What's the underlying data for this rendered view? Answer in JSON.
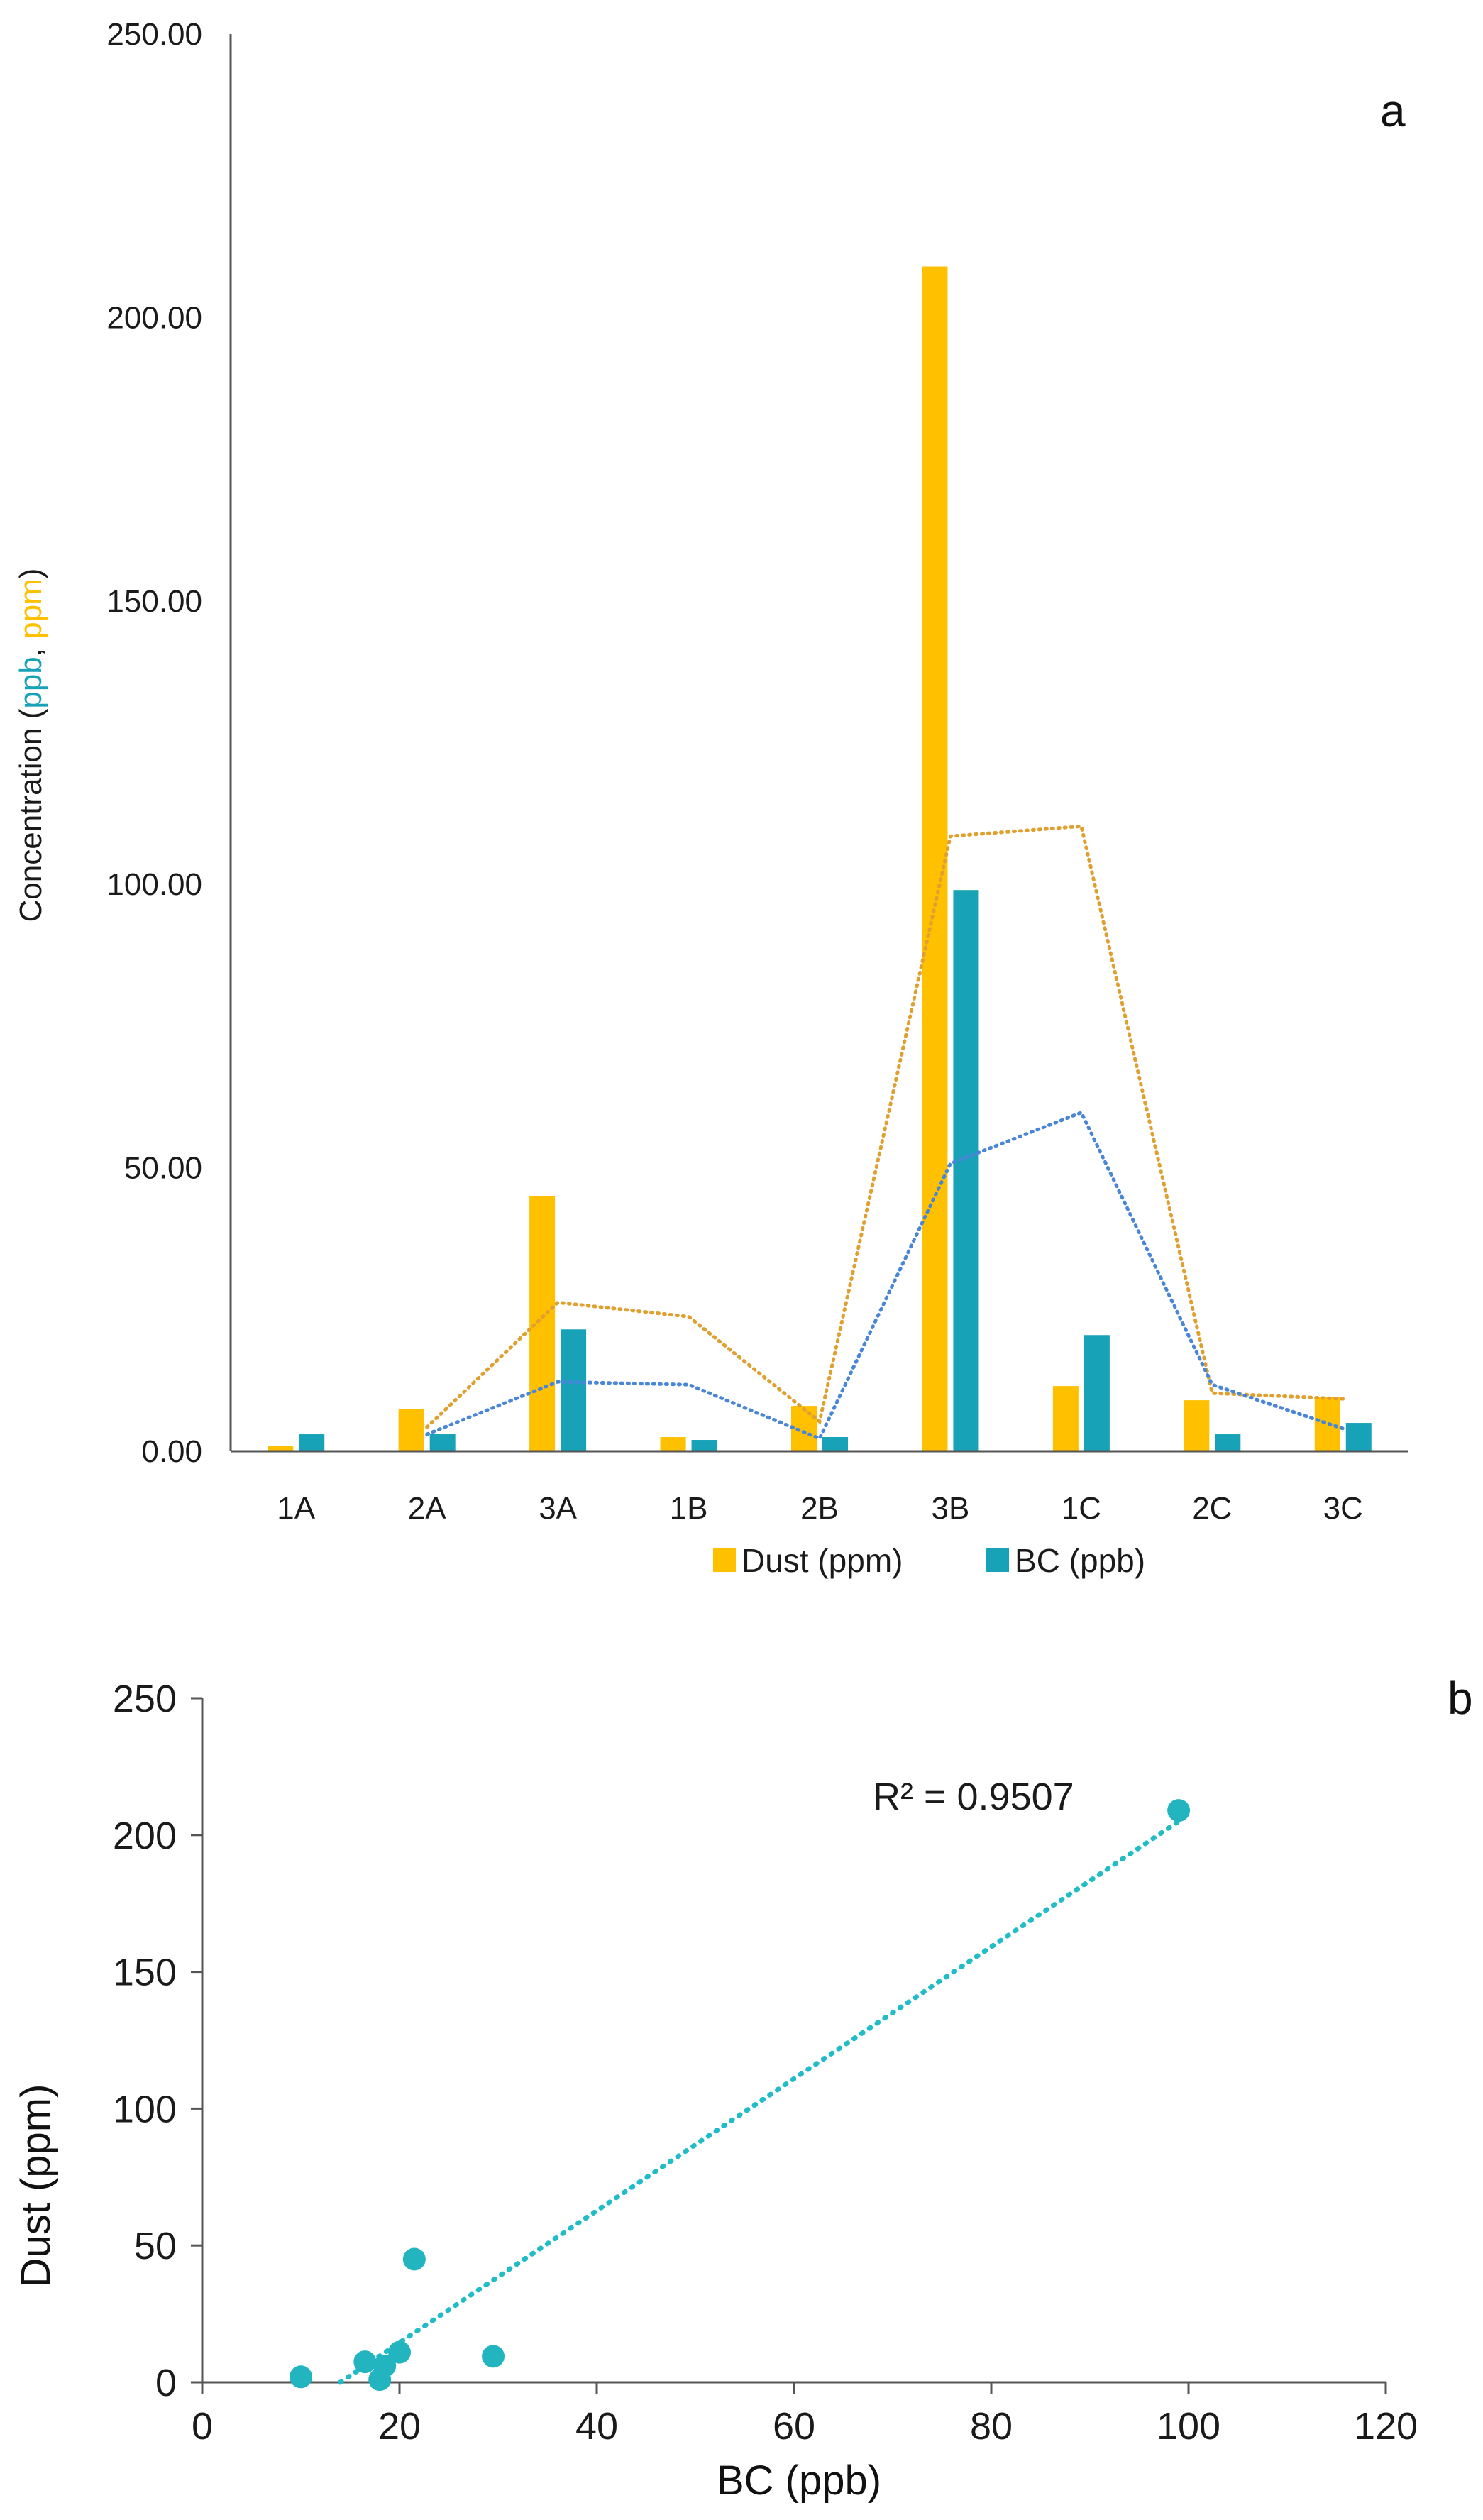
{
  "colors": {
    "dust": "#FFC000",
    "bc": "#17A2B8",
    "dust_trend": "#E0A030",
    "bc_trend": "#4A86D8",
    "scatter": "#22B5BF",
    "scatter_trend": "#20BCC8",
    "axis": "#555555"
  },
  "chart_data": [
    {
      "panel_label": "a",
      "type": "bar",
      "title": "",
      "ylabel": {
        "prefix": "Concentration (",
        "part1": "ppb",
        "sep": ", ",
        "part2": "ppm",
        "suffix": ")"
      },
      "ylim": [
        0,
        250
      ],
      "yticks": [
        0,
        50,
        100,
        150,
        200,
        250
      ],
      "ytick_labels": [
        "0.00",
        "50.00",
        "100.00",
        "150.00",
        "200.00",
        "250.00"
      ],
      "categories": [
        "1A",
        "2A",
        "3A",
        "1B",
        "2B",
        "3B",
        "1C",
        "2C",
        "3C"
      ],
      "series": [
        {
          "name": "Dust (ppm)",
          "values": [
            1,
            7.5,
            45,
            2.5,
            8,
            209,
            11.5,
            9,
            9.5
          ]
        },
        {
          "name": "BC (ppb)",
          "values": [
            3,
            3,
            21.5,
            2,
            2.5,
            99,
            20.5,
            3,
            5
          ]
        }
      ],
      "trendlines": [
        {
          "series": "Dust (ppm)",
          "type": "moving average",
          "values": [
            null,
            4.25,
            26.25,
            23.75,
            5.25,
            108.5,
            110.25,
            10.25,
            9.25
          ]
        },
        {
          "series": "BC (ppb)",
          "type": "moving average",
          "values": [
            null,
            3,
            12.25,
            11.75,
            2.25,
            50.75,
            59.75,
            11.75,
            4
          ]
        }
      ],
      "legend": "bottom"
    },
    {
      "panel_label": "b",
      "type": "scatter",
      "title": "",
      "xlabel": "BC (ppb)",
      "ylabel": "Dust (ppm)",
      "xlim": [
        0,
        120
      ],
      "ylim": [
        0,
        250
      ],
      "xticks": [
        0,
        20,
        40,
        60,
        80,
        100,
        120
      ],
      "yticks": [
        0,
        50,
        100,
        150,
        200,
        250
      ],
      "points": [
        {
          "x": 10,
          "y": 2
        },
        {
          "x": 16.5,
          "y": 7.5
        },
        {
          "x": 18,
          "y": 1
        },
        {
          "x": 18.5,
          "y": 6
        },
        {
          "x": 20,
          "y": 11
        },
        {
          "x": 21.5,
          "y": 45
        },
        {
          "x": 29.5,
          "y": 9.5
        },
        {
          "x": 99,
          "y": 209
        }
      ],
      "trendline": {
        "type": "linear",
        "x_range": [
          14,
          99
        ],
        "y_range": [
          0,
          205
        ]
      },
      "annotation": "R² = 0.9507"
    }
  ]
}
